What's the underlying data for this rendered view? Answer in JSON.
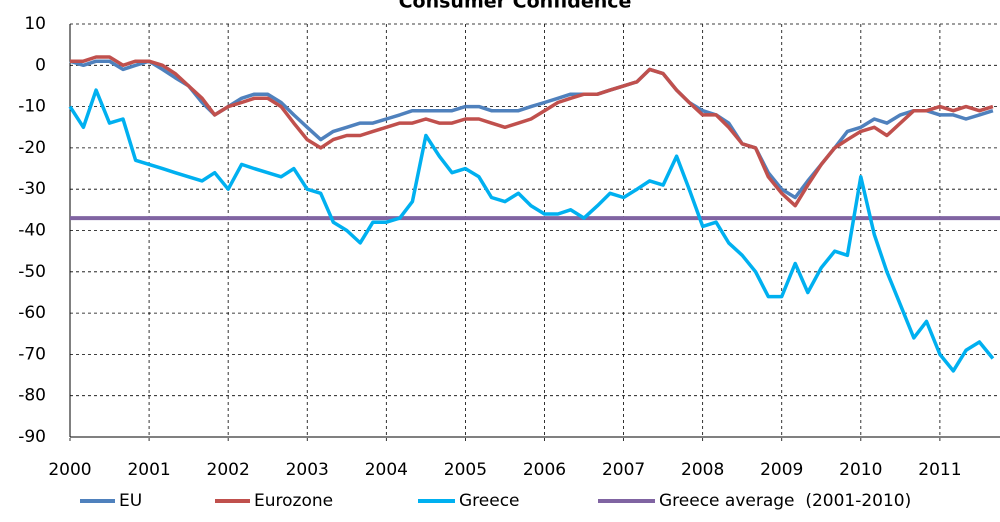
{
  "chart_data": {
    "type": "line",
    "title": "Consumer Confidence",
    "x": [
      2000,
      2000.17,
      2000.33,
      2000.5,
      2000.67,
      2000.83,
      2001,
      2001.17,
      2001.33,
      2001.5,
      2001.67,
      2001.83,
      2002,
      2002.17,
      2002.33,
      2002.5,
      2002.67,
      2002.83,
      2003,
      2003.17,
      2003.33,
      2003.5,
      2003.67,
      2003.83,
      2004,
      2004.17,
      2004.33,
      2004.5,
      2004.67,
      2004.83,
      2005,
      2005.17,
      2005.33,
      2005.5,
      2005.67,
      2005.83,
      2006,
      2006.17,
      2006.33,
      2006.5,
      2006.67,
      2006.83,
      2007,
      2007.17,
      2007.33,
      2007.5,
      2007.67,
      2007.83,
      2008,
      2008.17,
      2008.33,
      2008.5,
      2008.67,
      2008.83,
      2009,
      2009.17,
      2009.33,
      2009.5,
      2009.67,
      2009.83,
      2010,
      2010.17,
      2010.33,
      2010.5,
      2010.67,
      2010.83,
      2011,
      2011.17,
      2011.33,
      2011.5,
      2011.67
    ],
    "series": [
      {
        "name": "EU",
        "color": "#4f81bd",
        "values": [
          1,
          0,
          1,
          1,
          -1,
          0,
          1,
          -1,
          -3,
          -5,
          -9,
          -12,
          -10,
          -8,
          -7,
          -7,
          -9,
          -12,
          -15,
          -18,
          -16,
          -15,
          -14,
          -14,
          -13,
          -12,
          -11,
          -11,
          -11,
          -11,
          -10,
          -10,
          -11,
          -11,
          -11,
          -10,
          -9,
          -8,
          -7,
          -7,
          -7,
          -6,
          -5,
          -4,
          -1,
          -2,
          -6,
          -9,
          -11,
          -12,
          -14,
          -19,
          -20,
          -26,
          -30,
          -32,
          -28,
          -24,
          -20,
          -16,
          -15,
          -13,
          -14,
          -12,
          -11,
          -11,
          -12,
          -12,
          -13,
          -12,
          -11
        ]
      },
      {
        "name": "Eurozone",
        "color": "#c0504d",
        "values": [
          1,
          1,
          2,
          2,
          0,
          1,
          1,
          0,
          -2,
          -5,
          -8,
          -12,
          -10,
          -9,
          -8,
          -8,
          -10,
          -14,
          -18,
          -20,
          -18,
          -17,
          -17,
          -16,
          -15,
          -14,
          -14,
          -13,
          -14,
          -14,
          -13,
          -13,
          -14,
          -15,
          -14,
          -13,
          -11,
          -9,
          -8,
          -7,
          -7,
          -6,
          -5,
          -4,
          -1,
          -2,
          -6,
          -9,
          -12,
          -12,
          -15,
          -19,
          -20,
          -27,
          -31,
          -34,
          -29,
          -24,
          -20,
          -18,
          -16,
          -15,
          -17,
          -14,
          -11,
          -11,
          -10,
          -11,
          -10,
          -11,
          -10
        ]
      },
      {
        "name": "Greece",
        "color": "#00b0f0",
        "values": [
          -10,
          -15,
          -6,
          -14,
          -13,
          -23,
          -24,
          -25,
          -26,
          -27,
          -28,
          -26,
          -30,
          -24,
          -25,
          -26,
          -27,
          -25,
          -30,
          -31,
          -38,
          -40,
          -43,
          -38,
          -38,
          -37,
          -33,
          -17,
          -22,
          -26,
          -25,
          -27,
          -32,
          -33,
          -31,
          -34,
          -36,
          -36,
          -35,
          -37,
          -34,
          -31,
          -32,
          -30,
          -28,
          -29,
          -22,
          -30,
          -39,
          -38,
          -43,
          -46,
          -50,
          -56,
          -56,
          -48,
          -55,
          -49,
          -45,
          -46,
          -27,
          -41,
          -50,
          -58,
          -66,
          -62,
          -70,
          -74,
          -69,
          -67,
          -71
        ]
      }
    ],
    "hlines": [
      {
        "name": "Greece average  (2001-2010)",
        "color": "#8064a2",
        "value": -37
      }
    ],
    "xlim": [
      2000,
      2011.76
    ],
    "xticks": [
      2000,
      2001,
      2002,
      2003,
      2004,
      2005,
      2006,
      2007,
      2008,
      2009,
      2010,
      2011
    ],
    "ylim": [
      -90,
      10
    ],
    "yticks": [
      -90,
      -80,
      -70,
      -60,
      -50,
      -40,
      -30,
      -20,
      -10,
      0,
      10
    ],
    "grid": true
  }
}
